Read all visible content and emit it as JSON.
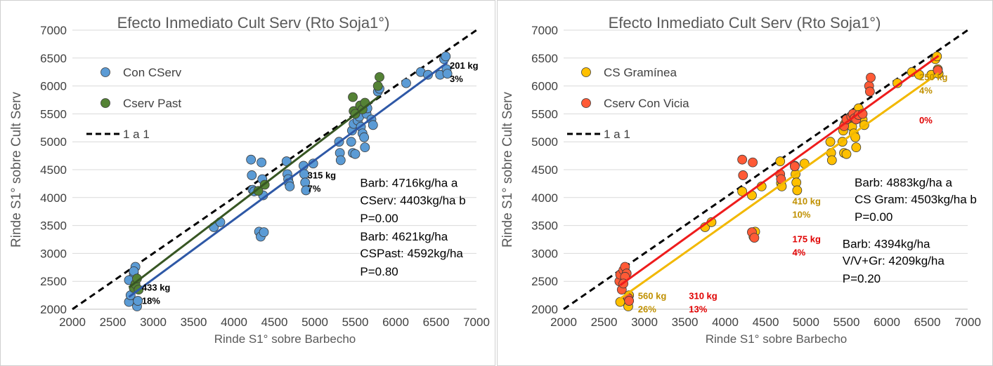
{
  "colors": {
    "con_cserv": "#5b9bd5",
    "con_cserv_line": "#2e58a6",
    "cserv_past": "#548235",
    "cserv_past_line": "#375623",
    "gramineas": "#ffc000",
    "gramineas_line": "#f2b800",
    "vicia": "#ff5a36",
    "vicia_line": "#ee1c1c",
    "gold_text": "#c09000",
    "red_text": "#e00000",
    "one_to_one": "#000000"
  },
  "chart_data": [
    {
      "type": "scatter",
      "title": "Efecto Inmediato Cult Serv (Rto Soja1°)",
      "xlabel": "Rinde S1° sobre Barbecho",
      "ylabel": "Rinde S1° sobre Cult Serv",
      "xlim": [
        2000,
        7000
      ],
      "ylim": [
        2000,
        7000
      ],
      "xticks": [
        2000,
        2500,
        3000,
        3500,
        4000,
        4500,
        5000,
        5500,
        6000,
        6500,
        7000
      ],
      "yticks": [
        2000,
        2500,
        3000,
        3500,
        4000,
        4500,
        5000,
        5500,
        6000,
        6500,
        7000
      ],
      "grid": "horizontal",
      "legend_placement": "top-left",
      "legend": [
        {
          "label": "Con CServ",
          "kind": "marker",
          "color": "#5b9bd5"
        },
        {
          "label": "Cserv Past",
          "kind": "marker",
          "color": "#548235"
        },
        {
          "label": "1 a 1",
          "kind": "dashed",
          "color": "#000000"
        }
      ],
      "series": [
        {
          "name": "Con CServ",
          "color": "#5b9bd5",
          "x": [
            2700,
            2720,
            2740,
            2760,
            2780,
            2800,
            2700,
            2760,
            2810,
            3750,
            3830,
            4210,
            4220,
            4230,
            4250,
            4310,
            4330,
            4340,
            4350,
            4360,
            4370,
            4650,
            4660,
            4670,
            4680,
            4690,
            4860,
            4870,
            4880,
            4890,
            4980,
            5300,
            5310,
            5320,
            5450,
            5460,
            5470,
            5480,
            5500,
            5530,
            5550,
            5570,
            5590,
            5610,
            5620,
            5640,
            5650,
            5700,
            5720,
            5780,
            5800,
            6130,
            6310,
            6400,
            6550,
            6600,
            6620,
            6630,
            6640
          ],
          "y": [
            2130,
            2250,
            2550,
            2650,
            2760,
            2050,
            2520,
            2680,
            2150,
            3470,
            3560,
            4680,
            4400,
            4140,
            4110,
            3390,
            3300,
            4630,
            4330,
            4040,
            3380,
            4650,
            4420,
            4330,
            4260,
            4200,
            4570,
            4420,
            4270,
            4130,
            4610,
            5000,
            4800,
            4670,
            5000,
            5200,
            4800,
            5320,
            4780,
            5380,
            5450,
            5270,
            5150,
            5080,
            4900,
            5500,
            5600,
            5400,
            5300,
            5900,
            5950,
            6050,
            6250,
            6200,
            6200,
            6480,
            6530,
            6300,
            6220
          ]
        },
        {
          "name": "Cserv Past",
          "color": "#548235",
          "x": [
            2760,
            2780,
            2800,
            2820,
            4300,
            4380,
            5470,
            5480,
            5500,
            5560,
            5590,
            5620,
            5780,
            5800
          ],
          "y": [
            2380,
            2450,
            2550,
            2350,
            4120,
            4230,
            5800,
            5550,
            5500,
            5650,
            5580,
            5700,
            6000,
            6160
          ]
        }
      ],
      "trend_lines": [
        {
          "series": "Con CServ",
          "x1": 2700,
          "y1": 2220,
          "x2": 6640,
          "y2": 6420,
          "color": "#2e58a6"
        },
        {
          "series": "Cserv Past",
          "x1": 2700,
          "y1": 2390,
          "x2": 5800,
          "y2": 5820,
          "color": "#375623"
        }
      ],
      "one_to_one": {
        "x1": 2000,
        "y1": 2000,
        "x2": 7000,
        "y2": 7000
      },
      "annotations": [
        {
          "lines": [
            "201 kg",
            "3%"
          ],
          "x": 6670,
          "y": 6310,
          "color": "#000000",
          "bold": true
        },
        {
          "lines": [
            "315 kg",
            "7%"
          ],
          "x": 4910,
          "y": 4340,
          "color": "#000000",
          "bold": true
        },
        {
          "lines": [
            "433 kg",
            "18%"
          ],
          "x": 2860,
          "y": 2330,
          "color": "#000000",
          "bold": true
        }
      ],
      "stats": [
        {
          "text": "Barb: 4716kg/ha   a",
          "x": 5560,
          "y": 4190
        },
        {
          "text": "CServ: 4403kg/ha  b",
          "x": 5560,
          "y": 3880
        },
        {
          "text": "P=0.00",
          "x": 5560,
          "y": 3560
        },
        {
          "text": "Barb: 4621kg/ha",
          "x": 5560,
          "y": 3230
        },
        {
          "text": "CSPast: 4592kg/ha",
          "x": 5560,
          "y": 2930
        },
        {
          "text": "P=0.80",
          "x": 5560,
          "y": 2600
        }
      ]
    },
    {
      "type": "scatter",
      "title": "Efecto Inmediato Cult Serv (Rto Soja1°)",
      "xlabel": "Rinde S1° sobre Barbecho",
      "ylabel": "Rinde S1° sobre Cult Serv",
      "xlim": [
        2000,
        7000
      ],
      "ylim": [
        2000,
        7000
      ],
      "xticks": [
        2000,
        2500,
        3000,
        3500,
        4000,
        4500,
        5000,
        5500,
        6000,
        6500,
        7000
      ],
      "yticks": [
        2000,
        2500,
        3000,
        3500,
        4000,
        4500,
        5000,
        5500,
        6000,
        6500,
        7000
      ],
      "grid": "horizontal",
      "legend_placement": "top-left",
      "legend": [
        {
          "label": "CS Gramínea",
          "kind": "marker",
          "color": "#ffc000"
        },
        {
          "label": "Cserv Con Vicia",
          "kind": "marker",
          "color": "#ff5a36"
        },
        {
          "label": "1 a 1",
          "kind": "dashed",
          "color": "#000000"
        }
      ],
      "series": [
        {
          "name": "CS Gramínea",
          "color": "#ffc000",
          "x": [
            2700,
            2760,
            2800,
            2810,
            3750,
            3830,
            4210,
            4330,
            4350,
            4370,
            4450,
            4680,
            4690,
            4700,
            4860,
            4870,
            4880,
            4890,
            4980,
            5300,
            5310,
            5320,
            5450,
            5460,
            5470,
            5480,
            5500,
            5530,
            5550,
            5570,
            5590,
            5610,
            5620,
            5640,
            5650,
            5700,
            5720,
            6130,
            6310,
            6400,
            6550,
            6600,
            6620,
            6630,
            6640
          ],
          "y": [
            2130,
            2680,
            2050,
            2250,
            3470,
            3560,
            4110,
            4040,
            3300,
            3390,
            4200,
            4650,
            4260,
            4200,
            4570,
            4420,
            4270,
            4130,
            4610,
            5000,
            4800,
            4670,
            5000,
            5200,
            4800,
            5320,
            4780,
            5380,
            5450,
            5270,
            5150,
            5080,
            4900,
            5500,
            5600,
            5400,
            5300,
            6050,
            6250,
            6200,
            6200,
            6480,
            6530,
            6300,
            6220
          ]
        },
        {
          "name": "Cserv Con Vicia",
          "color": "#ff5a36",
          "x": [
            2690,
            2700,
            2720,
            2740,
            2760,
            2780,
            2800,
            2810,
            2760,
            2740,
            4210,
            4220,
            4330,
            4340,
            4360,
            4680,
            4690,
            4860,
            5470,
            5500,
            5560,
            5580,
            5600,
            5620,
            5650,
            5700,
            5780,
            5790,
            5800,
            6630
          ],
          "y": [
            2500,
            2620,
            2350,
            2700,
            2760,
            2640,
            2200,
            2150,
            2580,
            2460,
            4680,
            4400,
            3380,
            4630,
            3280,
            4420,
            4330,
            4560,
            5280,
            5400,
            5450,
            5500,
            5420,
            5400,
            5480,
            5500,
            6000,
            5900,
            6150,
            6280
          ]
        }
      ],
      "trend_lines": [
        {
          "series": "CS Gramínea",
          "x1": 2700,
          "y1": 2190,
          "x2": 6640,
          "y2": 6230,
          "color": "#f2b800"
        },
        {
          "series": "Cserv Con Vicia",
          "x1": 2700,
          "y1": 2430,
          "x2": 6640,
          "y2": 6540,
          "color": "#ee1c1c"
        }
      ],
      "one_to_one": {
        "x1": 2000,
        "y1": 2000,
        "x2": 7000,
        "y2": 7000
      },
      "annotations": [
        {
          "lines": [
            "250 kg",
            "4%"
          ],
          "x": 6400,
          "y": 6100,
          "color": "#c09000",
          "bold": true
        },
        {
          "lines": [
            "0%"
          ],
          "x": 6400,
          "y": 5330,
          "color": "#e00000",
          "bold": true
        },
        {
          "lines": [
            "410 kg",
            "10%"
          ],
          "x": 4830,
          "y": 3880,
          "color": "#c09000",
          "bold": true
        },
        {
          "lines": [
            "175 kg",
            "4%"
          ],
          "x": 4830,
          "y": 3200,
          "color": "#e00000",
          "bold": true
        },
        {
          "lines": [
            "560 kg",
            "26%"
          ],
          "x": 2920,
          "y": 2180,
          "color": "#c09000",
          "bold": true
        },
        {
          "lines": [
            "310 kg",
            "13%"
          ],
          "x": 3550,
          "y": 2180,
          "color": "#e00000",
          "bold": true
        }
      ],
      "stats": [
        {
          "text": "Barb: 4883kg/ha   a",
          "x": 5600,
          "y": 4200
        },
        {
          "text": "CS Gram: 4503kg/ha  b",
          "x": 5600,
          "y": 3900
        },
        {
          "text": "P=0.00",
          "x": 5600,
          "y": 3580
        },
        {
          "text": "Barb: 4394kg/ha",
          "x": 5450,
          "y": 3100
        },
        {
          "text": "V/V+Gr: 4209kg/ha",
          "x": 5450,
          "y": 2800
        },
        {
          "text": "P=0.20",
          "x": 5450,
          "y": 2480
        }
      ]
    }
  ]
}
